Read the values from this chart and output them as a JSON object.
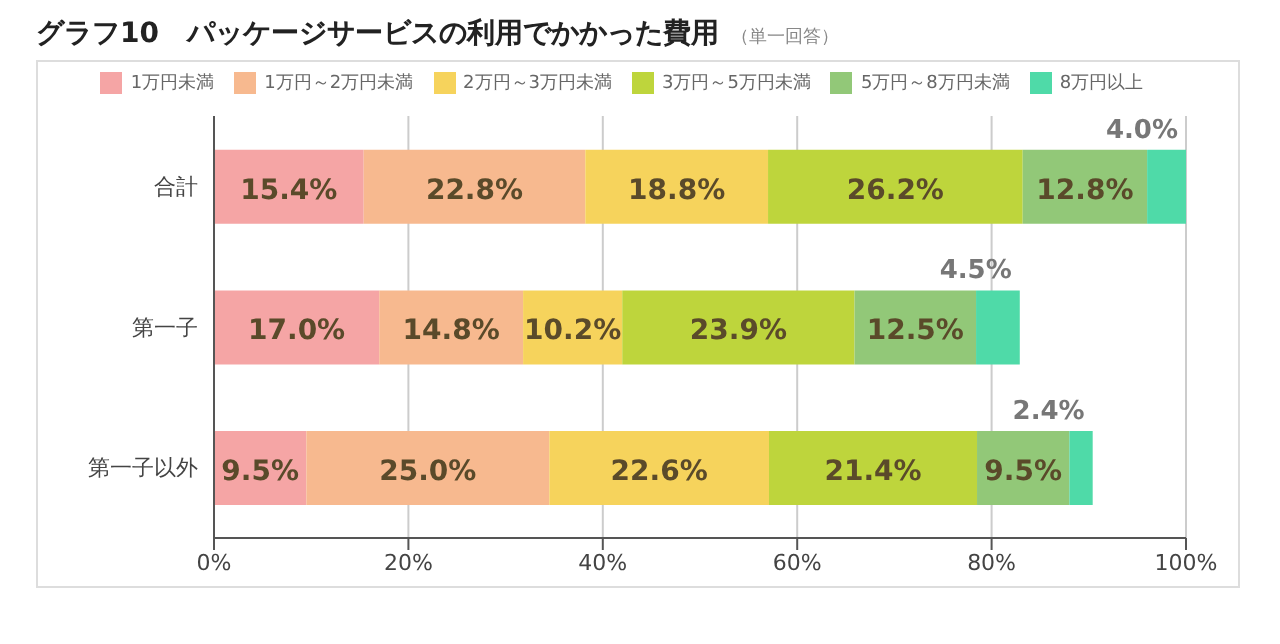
{
  "chart_data": {
    "type": "bar",
    "orientation": "horizontal",
    "stacked": true,
    "title": "グラフ10　パッケージサービスの利用でかかった費用",
    "subtitle": "（単一回答）",
    "categories": [
      "合計",
      "第一子",
      "第一子以外"
    ],
    "series": [
      {
        "name": "1万円未満",
        "color": "#f5a5a5",
        "values": [
          15.4,
          17.0,
          9.5
        ],
        "value_labels": [
          "15.4%",
          "17.0%",
          "9.5%"
        ]
      },
      {
        "name": "1万円～2万円未満",
        "color": "#f7b98f",
        "values": [
          22.8,
          14.8,
          25.0
        ],
        "value_labels": [
          "22.8%",
          "14.8%",
          "25.0%"
        ]
      },
      {
        "name": "2万円～3万円未満",
        "color": "#f6d35c",
        "values": [
          18.8,
          10.2,
          22.6
        ],
        "value_labels": [
          "18.8%",
          "10.2%",
          "22.6%"
        ]
      },
      {
        "name": "3万円～5万円未満",
        "color": "#bed53c",
        "values": [
          26.2,
          23.9,
          21.4
        ],
        "value_labels": [
          "26.2%",
          "23.9%",
          "21.4%"
        ]
      },
      {
        "name": "5万円～8万円未満",
        "color": "#92c878",
        "values": [
          12.8,
          12.5,
          9.5
        ],
        "value_labels": [
          "12.8%",
          "12.5%",
          "9.5%"
        ]
      },
      {
        "name": "8万円以上",
        "color": "#4fdaa8",
        "values": [
          4.0,
          4.5,
          2.4
        ],
        "value_labels": [
          "4.0%",
          "4.5%",
          "2.4%"
        ]
      }
    ],
    "xlim": [
      0,
      100
    ],
    "xticks": [
      {
        "value": 0,
        "label": "0%"
      },
      {
        "value": 20,
        "label": "20%"
      },
      {
        "value": 40,
        "label": "40%"
      },
      {
        "value": 60,
        "label": "60%"
      },
      {
        "value": 80,
        "label": "80%"
      },
      {
        "value": 100,
        "label": "100%"
      }
    ],
    "grid": "x",
    "legend": "top"
  }
}
